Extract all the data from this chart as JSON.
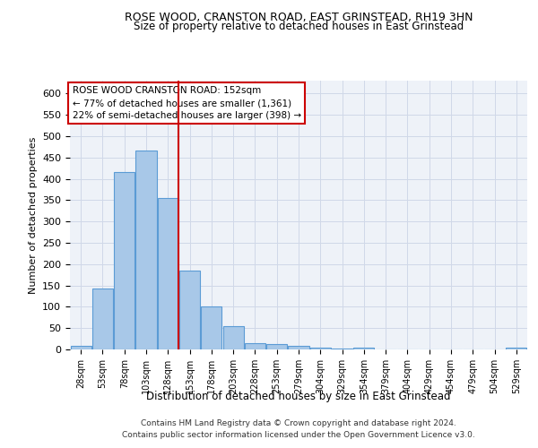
{
  "title": "ROSE WOOD, CRANSTON ROAD, EAST GRINSTEAD, RH19 3HN",
  "subtitle": "Size of property relative to detached houses in East Grinstead",
  "xlabel": "Distribution of detached houses by size in East Grinstead",
  "ylabel": "Number of detached properties",
  "footnote1": "Contains HM Land Registry data © Crown copyright and database right 2024.",
  "footnote2": "Contains public sector information licensed under the Open Government Licence v3.0.",
  "bar_labels": [
    "28sqm",
    "53sqm",
    "78sqm",
    "103sqm",
    "128sqm",
    "153sqm",
    "178sqm",
    "203sqm",
    "228sqm",
    "253sqm",
    "279sqm",
    "304sqm",
    "329sqm",
    "354sqm",
    "379sqm",
    "404sqm",
    "429sqm",
    "454sqm",
    "479sqm",
    "504sqm",
    "529sqm"
  ],
  "bar_values": [
    9,
    143,
    415,
    467,
    355,
    185,
    101,
    54,
    15,
    12,
    9,
    5,
    3,
    4,
    1,
    0,
    0,
    0,
    0,
    0,
    4
  ],
  "bar_color": "#a8c8e8",
  "bar_edge_color": "#5b9bd5",
  "vline_color": "#cc0000",
  "annotation_text": "ROSE WOOD CRANSTON ROAD: 152sqm\n← 77% of detached houses are smaller (1,361)\n22% of semi-detached houses are larger (398) →",
  "annotation_box_color": "#ffffff",
  "annotation_border_color": "#cc0000",
  "grid_color": "#d0d8e8",
  "background_color": "#eef2f8",
  "ylim": [
    0,
    630
  ],
  "yticks": [
    0,
    50,
    100,
    150,
    200,
    250,
    300,
    350,
    400,
    450,
    500,
    550,
    600
  ]
}
